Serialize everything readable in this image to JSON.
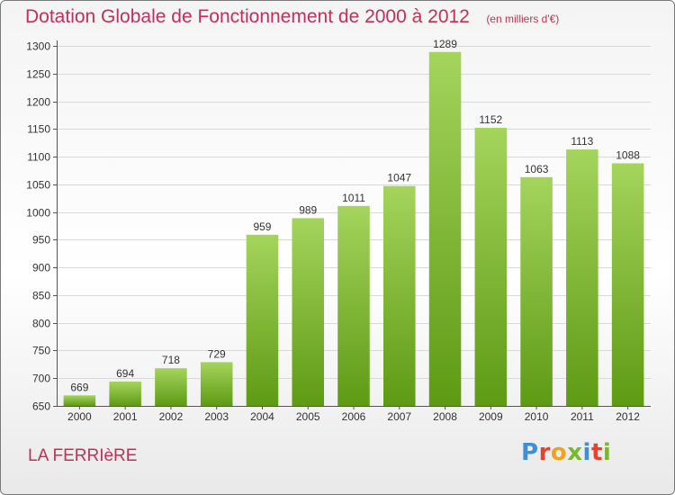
{
  "header": {
    "title": "Dotation Globale de Fonctionnement de 2000 à 2012",
    "unit": "(en milliers d'€)"
  },
  "footer": {
    "commune": "LA FERRIèRE",
    "logo_letters": [
      "P",
      "r",
      "o",
      "x",
      "i",
      "t",
      "i"
    ],
    "logo_colors": [
      "#3d8fd6",
      "#e8412c",
      "#f0a21b",
      "#79b82f",
      "#3d8fd6",
      "#e8412c",
      "#79b82f"
    ]
  },
  "colors": {
    "bar_top": "#a4d45c",
    "bar_bottom": "#5e9a14",
    "grid": "#d9d9d9",
    "axis": "#555555",
    "title": "#c0305a"
  },
  "chart_data": {
    "type": "bar",
    "title": "Dotation Globale de Fonctionnement de 2000 à 2012",
    "xlabel": "",
    "ylabel": "",
    "categories": [
      "2000",
      "2001",
      "2002",
      "2003",
      "2004",
      "2005",
      "2006",
      "2007",
      "2008",
      "2009",
      "2010",
      "2011",
      "2012"
    ],
    "values": [
      669,
      694,
      718,
      729,
      959,
      989,
      1011,
      1047,
      1289,
      1152,
      1063,
      1113,
      1088
    ],
    "ylim": [
      650,
      1300
    ],
    "yticks": [
      650,
      700,
      750,
      800,
      850,
      900,
      950,
      1000,
      1050,
      1100,
      1150,
      1200,
      1250,
      1300
    ],
    "grid": true,
    "legend": "none"
  }
}
